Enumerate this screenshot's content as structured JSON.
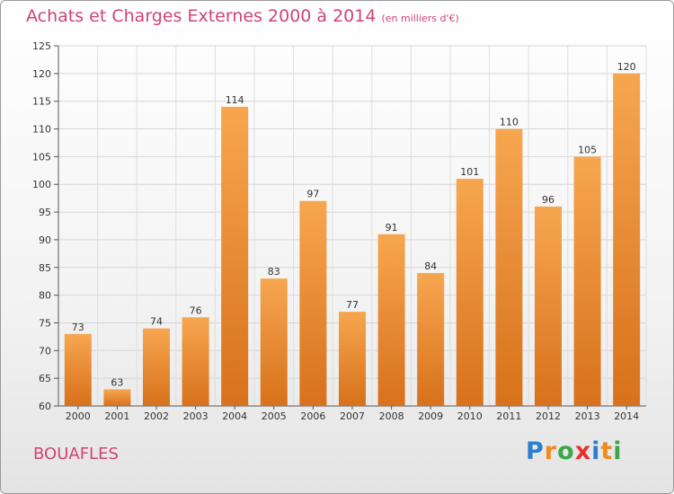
{
  "chart_data": {
    "type": "bar",
    "title": "Achats et Charges Externes 2000 à 2014",
    "subtitle": "(en milliers d'€)",
    "categories": [
      "2000",
      "2001",
      "2002",
      "2003",
      "2004",
      "2005",
      "2006",
      "2007",
      "2008",
      "2009",
      "2010",
      "2011",
      "2012",
      "2013",
      "2014"
    ],
    "values": [
      73,
      63,
      74,
      76,
      114,
      83,
      97,
      77,
      91,
      84,
      101,
      110,
      96,
      105,
      120
    ],
    "ylim": [
      60,
      125
    ],
    "yticks": [
      60,
      65,
      70,
      75,
      80,
      85,
      90,
      95,
      100,
      105,
      110,
      115,
      120,
      125
    ],
    "xlabel": "",
    "ylabel": "",
    "grid": true,
    "bar_color": "#f0922e"
  },
  "footer": {
    "commune": "BOUAFLES",
    "logo_letters": [
      "P",
      "r",
      "o",
      "x",
      "i",
      "t",
      "i"
    ],
    "logo_colors": [
      "#2a7fd0",
      "#f08a1c",
      "#3aa84a",
      "#e8312f",
      "#2a7fd0",
      "#f08a1c",
      "#3aa84a"
    ]
  }
}
